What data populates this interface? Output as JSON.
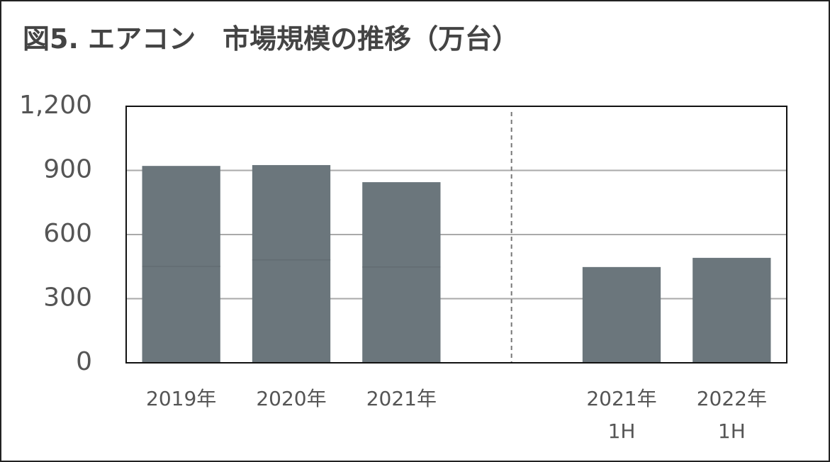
{
  "chart_data": {
    "type": "stacked_bar",
    "title": "図5. エアコン　市場規模の推移（万台）",
    "categories": [
      "2019年",
      "2020年",
      "2021年",
      null,
      "2021年\n1H",
      "2022年\n1H"
    ],
    "series": [
      {
        "color": "#6b767c",
        "values": [
          451,
          481,
          448,
          null,
          448,
          491
        ]
      },
      {
        "color": "#6b767c",
        "values": [
          470,
          444,
          397,
          null,
          null,
          null
        ]
      }
    ],
    "ylim": [
      0,
      1200
    ],
    "yticks": [
      0,
      300,
      600,
      900,
      {
        "value": 1200,
        "label": "1,200"
      }
    ],
    "grid": true
  }
}
